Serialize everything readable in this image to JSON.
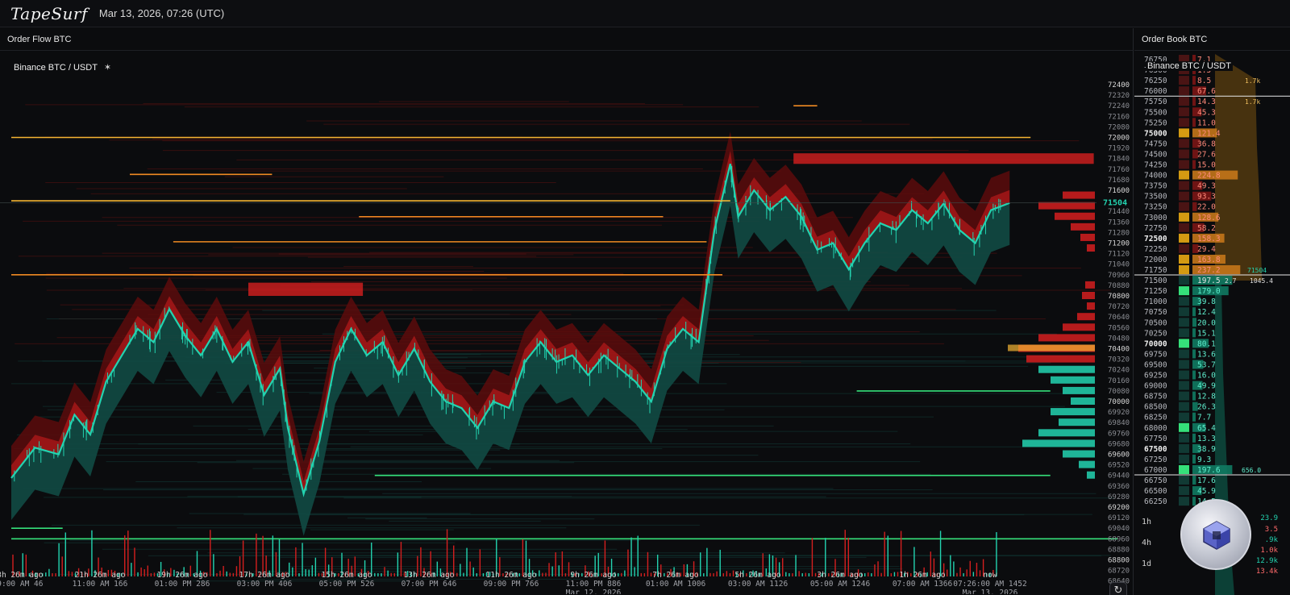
{
  "app": {
    "logo": "TapeSurf",
    "timestamp": "Mar 13, 2026, 07:26 (UTC)"
  },
  "left_panel": {
    "title": "Order Flow BTC",
    "chart_label": "Binance BTC / USDT",
    "pin_icon": "pin-icon",
    "refresh_icon": "refresh-icon"
  },
  "right_panel": {
    "title": "Order Book BTC",
    "subtitle": "Binance BTC / USDT",
    "timeframes": [
      "1h",
      "4h",
      "1d"
    ],
    "side_values": [
      "23.9",
      "3.5",
      ".9k",
      "1.0k",
      "12.9k",
      "13.4k"
    ]
  },
  "colors": {
    "ask": "#d51f1f",
    "bid": "#23d3b0",
    "level_gold": "#f5b533",
    "level_orange": "#f08a22",
    "level_green": "#35e07a",
    "background": "#0b0c0e"
  },
  "chart_data": {
    "type": "heatmap",
    "y_ticks": [
      72400,
      72320,
      72240,
      72160,
      72080,
      72000,
      71920,
      71840,
      71760,
      71680,
      71600,
      71520,
      71440,
      71360,
      71280,
      71200,
      71120,
      71040,
      70960,
      70880,
      70800,
      70720,
      70640,
      70560,
      70480,
      70400,
      70320,
      70240,
      70160,
      70080,
      70000,
      69920,
      69840,
      69760,
      69680,
      69600,
      69520,
      69440,
      69360,
      69280,
      69200,
      69120,
      69040,
      68960,
      68880,
      68800,
      68720,
      68640
    ],
    "current_price": "71504",
    "x_ticks": [
      {
        "line1": "23h 26m ago",
        "line2": "09:00 AM 46",
        "line3": ""
      },
      {
        "line1": "21h 26m ago",
        "line2": "11:00 AM 166",
        "line3": ""
      },
      {
        "line1": "19h 26m ago",
        "line2": "01:00 PM 286",
        "line3": ""
      },
      {
        "line1": "17h 26m ago",
        "line2": "03:00 PM 406",
        "line3": ""
      },
      {
        "line1": "15h 26m ago",
        "line2": "05:00 PM 526",
        "line3": ""
      },
      {
        "line1": "13h 26m ago",
        "line2": "07:00 PM 646",
        "line3": ""
      },
      {
        "line1": "11h 26m ago",
        "line2": "09:00 PM 766",
        "line3": ""
      },
      {
        "line1": "9h 26m ago",
        "line2": "11:00 PM 886",
        "line3": "Mar 12, 2026"
      },
      {
        "line1": "7h 26m ago",
        "line2": "01:00 AM 1006",
        "line3": ""
      },
      {
        "line1": "5h 26m ago",
        "line2": "03:00 AM 1126",
        "line3": ""
      },
      {
        "line1": "3h 26m ago",
        "line2": "05:00 AM 1246",
        "line3": ""
      },
      {
        "line1": "1h 26m ago",
        "line2": "07:00 AM 1366",
        "line3": ""
      },
      {
        "line1": "now",
        "line2": "07:26:00 AM 1452",
        "line3": "Mar 13, 2026"
      }
    ],
    "price_path": [
      [
        0,
        69420
      ],
      [
        0.6,
        69650
      ],
      [
        1.2,
        69600
      ],
      [
        1.6,
        69900
      ],
      [
        2.0,
        69750
      ],
      [
        2.4,
        70150
      ],
      [
        2.8,
        70350
      ],
      [
        3.2,
        70550
      ],
      [
        3.6,
        70450
      ],
      [
        4.0,
        70700
      ],
      [
        4.4,
        70500
      ],
      [
        4.8,
        70350
      ],
      [
        5.2,
        70550
      ],
      [
        5.6,
        70300
      ],
      [
        6.0,
        70450
      ],
      [
        6.4,
        70050
      ],
      [
        6.8,
        70250
      ],
      [
        7.0,
        69800
      ],
      [
        7.4,
        69300
      ],
      [
        7.8,
        69700
      ],
      [
        8.2,
        70300
      ],
      [
        8.6,
        70550
      ],
      [
        9.0,
        70350
      ],
      [
        9.4,
        70450
      ],
      [
        9.8,
        70200
      ],
      [
        10.2,
        70400
      ],
      [
        10.6,
        70150
      ],
      [
        11.0,
        70000
      ],
      [
        11.4,
        69950
      ],
      [
        11.8,
        69800
      ],
      [
        12.2,
        70000
      ],
      [
        12.6,
        69950
      ],
      [
        13.0,
        70300
      ],
      [
        13.4,
        70450
      ],
      [
        13.8,
        70300
      ],
      [
        14.2,
        70350
      ],
      [
        14.6,
        70200
      ],
      [
        15.0,
        70350
      ],
      [
        15.4,
        70250
      ],
      [
        15.8,
        70150
      ],
      [
        16.2,
        70000
      ],
      [
        16.6,
        70400
      ],
      [
        17.0,
        70550
      ],
      [
        17.4,
        70450
      ],
      [
        17.8,
        71300
      ],
      [
        18.2,
        71800
      ],
      [
        18.4,
        71400
      ],
      [
        18.8,
        71600
      ],
      [
        19.2,
        71450
      ],
      [
        19.6,
        71550
      ],
      [
        20.0,
        71400
      ],
      [
        20.4,
        71150
      ],
      [
        20.8,
        71200
      ],
      [
        21.2,
        71000
      ],
      [
        21.6,
        71200
      ],
      [
        22.0,
        71350
      ],
      [
        22.4,
        71300
      ],
      [
        22.8,
        71450
      ],
      [
        23.2,
        71350
      ],
      [
        23.6,
        71500
      ],
      [
        24.0,
        71300
      ],
      [
        24.4,
        71200
      ],
      [
        24.8,
        71450
      ],
      [
        25.27,
        71504
      ]
    ],
    "ask_levels": [
      {
        "price": 72000,
        "from": 0,
        "to": 25.8,
        "color": "gold"
      },
      {
        "price": 71520,
        "from": 0,
        "to": 18.2,
        "color": "gold"
      },
      {
        "price": 71720,
        "from": 3.0,
        "to": 6.6,
        "color": "orange"
      },
      {
        "price": 71400,
        "from": 8.8,
        "to": 16.5,
        "color": "orange"
      },
      {
        "price": 71210,
        "from": 4.1,
        "to": 17.6,
        "color": "orange"
      },
      {
        "price": 70960,
        "from": 0,
        "to": 18.0,
        "color": "orange"
      },
      {
        "price": 72240,
        "from": 19.8,
        "to": 20.4,
        "color": "orange"
      }
    ],
    "bid_levels": [
      {
        "price": 70080,
        "from": 21.4,
        "to": 26.3,
        "color": "green"
      },
      {
        "price": 69440,
        "from": 9.2,
        "to": 26.3,
        "color": "green"
      },
      {
        "price": 68960,
        "from": 0,
        "to": 28.0,
        "color": "green"
      },
      {
        "price": 69040,
        "from": 0,
        "to": 1.3,
        "color": "green"
      }
    ],
    "ask_block": {
      "from_price": 71880,
      "to_price": 71800,
      "from": 19.8,
      "to": 27.4
    },
    "ask_block_2": {
      "from_price": 70900,
      "to_price": 70800,
      "from": 6.0,
      "to": 8.9
    }
  },
  "order_book": {
    "rows": [
      {
        "price": "76750",
        "qty": "7.1",
        "side": "ask",
        "bold": false
      },
      {
        "price": "76500",
        "qty": "1.5",
        "side": "ask",
        "bold": false
      },
      {
        "price": "76250",
        "qty": "8.5",
        "side": "ask",
        "bold": false
      },
      {
        "price": "76000",
        "qty": "67.6",
        "side": "ask",
        "bold": false
      },
      {
        "price": "75750",
        "qty": "14.3",
        "side": "ask",
        "bold": false
      },
      {
        "price": "75500",
        "qty": "45.3",
        "side": "ask",
        "bold": false
      },
      {
        "price": "75250",
        "qty": "11.0",
        "side": "ask",
        "bold": false
      },
      {
        "price": "75000",
        "qty": "121.4",
        "side": "ask",
        "bold": true
      },
      {
        "price": "74750",
        "qty": "36.8",
        "side": "ask",
        "bold": false
      },
      {
        "price": "74500",
        "qty": "27.6",
        "side": "ask",
        "bold": false
      },
      {
        "price": "74250",
        "qty": "15.0",
        "side": "ask",
        "bold": false
      },
      {
        "price": "74000",
        "qty": "224.8",
        "side": "ask",
        "bold": false
      },
      {
        "price": "73750",
        "qty": "49.3",
        "side": "ask",
        "bold": false
      },
      {
        "price": "73500",
        "qty": "93.3",
        "side": "ask",
        "bold": false
      },
      {
        "price": "73250",
        "qty": "22.0",
        "side": "ask",
        "bold": false
      },
      {
        "price": "73000",
        "qty": "128.6",
        "side": "ask",
        "bold": false
      },
      {
        "price": "72750",
        "qty": "58.2",
        "side": "ask",
        "bold": false
      },
      {
        "price": "72500",
        "qty": "158.3",
        "side": "ask",
        "bold": true
      },
      {
        "price": "72250",
        "qty": "29.4",
        "side": "ask",
        "bold": false
      },
      {
        "price": "72000",
        "qty": "163.8",
        "side": "ask",
        "bold": false
      },
      {
        "price": "71750",
        "qty": "237.2",
        "side": "ask",
        "bold": false
      },
      {
        "price": "71500",
        "qty": "197.5",
        "side": "mid",
        "bold": false
      },
      {
        "price": "71250",
        "qty": "179.0",
        "side": "bid",
        "bold": false
      },
      {
        "price": "71000",
        "qty": "39.8",
        "side": "bid",
        "bold": false
      },
      {
        "price": "70750",
        "qty": "12.4",
        "side": "bid",
        "bold": false
      },
      {
        "price": "70500",
        "qty": "20.0",
        "side": "bid",
        "bold": false
      },
      {
        "price": "70250",
        "qty": "15.1",
        "side": "bid",
        "bold": false
      },
      {
        "price": "70000",
        "qty": "80.1",
        "side": "bid",
        "bold": true
      },
      {
        "price": "69750",
        "qty": "13.6",
        "side": "bid",
        "bold": false
      },
      {
        "price": "69500",
        "qty": "53.7",
        "side": "bid",
        "bold": false
      },
      {
        "price": "69250",
        "qty": "16.0",
        "side": "bid",
        "bold": false
      },
      {
        "price": "69000",
        "qty": "49.9",
        "side": "bid",
        "bold": false
      },
      {
        "price": "68750",
        "qty": "12.8",
        "side": "bid",
        "bold": false
      },
      {
        "price": "68500",
        "qty": "26.3",
        "side": "bid",
        "bold": false
      },
      {
        "price": "68250",
        "qty": "7.7",
        "side": "bid",
        "bold": false
      },
      {
        "price": "68000",
        "qty": "65.4",
        "side": "bid",
        "bold": false
      },
      {
        "price": "67750",
        "qty": "13.3",
        "side": "bid",
        "bold": false
      },
      {
        "price": "67500",
        "qty": "38.9",
        "side": "bid",
        "bold": true
      },
      {
        "price": "67250",
        "qty": "9.3",
        "side": "bid",
        "bold": false
      },
      {
        "price": "67000",
        "qty": "197.6",
        "side": "bid",
        "bold": false
      },
      {
        "price": "66750",
        "qty": "17.6",
        "side": "bid",
        "bold": false
      },
      {
        "price": "66500",
        "qty": "45.9",
        "side": "bid",
        "bold": false
      },
      {
        "price": "66250",
        "qty": "14.5",
        "side": "bid",
        "bold": false
      }
    ],
    "cumulative_labels": [
      {
        "row": 2,
        "text": "1.7k"
      },
      {
        "row": 4,
        "text": "1.7k"
      },
      {
        "row": 20,
        "text": "71504"
      },
      {
        "row": 21,
        "text": "2.7"
      },
      {
        "row": 21,
        "text": "1045.4"
      },
      {
        "row": 39,
        "text": "656.0"
      }
    ]
  }
}
